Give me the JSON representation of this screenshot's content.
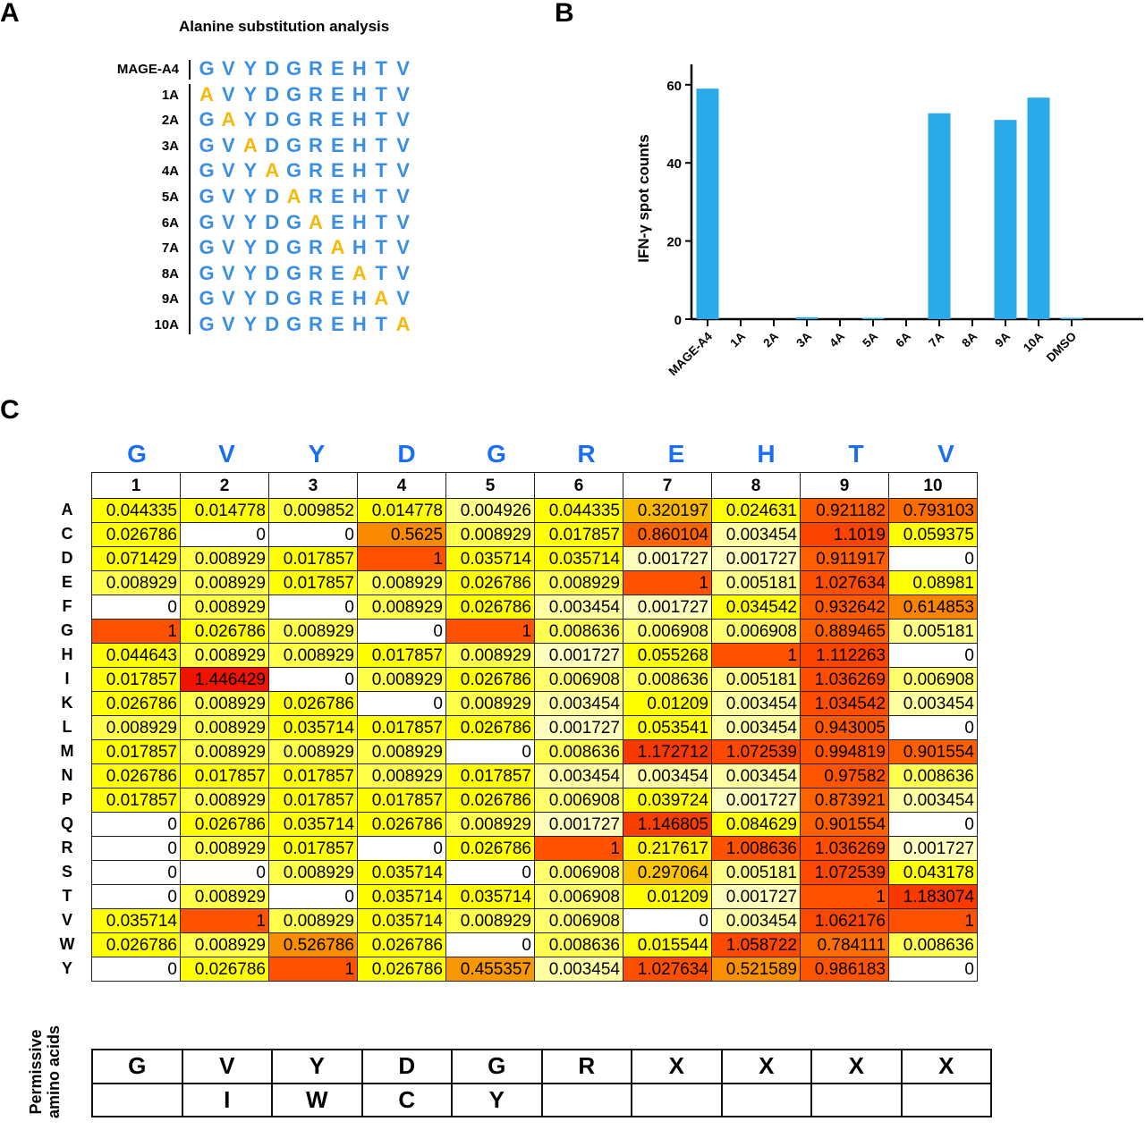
{
  "panels": {
    "a": "A",
    "b": "B",
    "c": "C"
  },
  "panel_a": {
    "title": "Alanine substitution analysis",
    "colors": {
      "native": "#3b8fe3",
      "substituted": "#f5b90a"
    },
    "rows": [
      {
        "label": "MAGE-A4",
        "seq": "GVYDGREHTV",
        "sub": -1
      },
      {
        "label": "1A",
        "seq": "AVYDGREHTV",
        "sub": 0
      },
      {
        "label": "2A",
        "seq": "GAYDGREHTV",
        "sub": 1
      },
      {
        "label": "3A",
        "seq": "GVADGREHTV",
        "sub": 2
      },
      {
        "label": "4A",
        "seq": "GVYAGREHTV",
        "sub": 3
      },
      {
        "label": "5A",
        "seq": "GVYDAREHTV",
        "sub": 4
      },
      {
        "label": "6A",
        "seq": "GVYDGAEHTV",
        "sub": 5
      },
      {
        "label": "7A",
        "seq": "GVYDGRAHTV",
        "sub": 6
      },
      {
        "label": "8A",
        "seq": "GVYDGREATV",
        "sub": 7
      },
      {
        "label": "9A",
        "seq": "GVYDGREHAV",
        "sub": 8
      },
      {
        "label": "10A",
        "seq": "GVYDGREHTA",
        "sub": 9
      }
    ]
  },
  "chart_data": [
    {
      "type": "bar",
      "categories": [
        "MAGE-A4",
        "1A",
        "2A",
        "3A",
        "4A",
        "5A",
        "6A",
        "7A",
        "8A",
        "9A",
        "10A",
        "DMSO"
      ],
      "values": [
        59,
        0,
        0,
        0.5,
        0,
        0.2,
        0,
        52.7,
        0,
        51,
        56.7,
        0.2
      ],
      "ylabel": "IFN-γ spot counts",
      "ylim": [
        0,
        65
      ],
      "yticks": [
        "0",
        "20",
        "40",
        "60"
      ],
      "color": "#2aaaea",
      "grid": false
    },
    {
      "type": "heatmap",
      "top_letters": [
        "G",
        "V",
        "Y",
        "D",
        "G",
        "R",
        "E",
        "H",
        "T",
        "V"
      ],
      "columns": [
        "1",
        "2",
        "3",
        "4",
        "5",
        "6",
        "7",
        "8",
        "9",
        "10"
      ],
      "rows": [
        "A",
        "C",
        "D",
        "E",
        "F",
        "G",
        "H",
        "I",
        "K",
        "L",
        "M",
        "N",
        "P",
        "Q",
        "R",
        "S",
        "T",
        "V",
        "W",
        "Y"
      ],
      "values": [
        [
          "0.044335",
          "0.014778",
          "0.009852",
          "0.014778",
          "0.004926",
          "0.044335",
          "0.320197",
          "0.024631",
          "0.921182",
          "0.793103"
        ],
        [
          "0.026786",
          "0",
          "0",
          "0.5625",
          "0.008929",
          "0.017857",
          "0.860104",
          "0.003454",
          "1.1019",
          "0.059375"
        ],
        [
          "0.071429",
          "0.008929",
          "0.017857",
          "1",
          "0.035714",
          "0.035714",
          "0.001727",
          "0.001727",
          "0.911917",
          "0"
        ],
        [
          "0.008929",
          "0.008929",
          "0.017857",
          "0.008929",
          "0.026786",
          "0.008929",
          "1",
          "0.005181",
          "1.027634",
          "0.08981"
        ],
        [
          "0",
          "0.008929",
          "0",
          "0.008929",
          "0.026786",
          "0.003454",
          "0.001727",
          "0.034542",
          "0.932642",
          "0.614853"
        ],
        [
          "1",
          "0.026786",
          "0.008929",
          "0",
          "1",
          "0.008636",
          "0.006908",
          "0.006908",
          "0.889465",
          "0.005181"
        ],
        [
          "0.044643",
          "0.008929",
          "0.008929",
          "0.017857",
          "0.008929",
          "0.001727",
          "0.055268",
          "1",
          "1.112263",
          "0"
        ],
        [
          "0.017857",
          "1.446429",
          "0",
          "0.008929",
          "0.026786",
          "0.006908",
          "0.008636",
          "0.005181",
          "1.036269",
          "0.006908"
        ],
        [
          "0.026786",
          "0.008929",
          "0.026786",
          "0",
          "0.008929",
          "0.003454",
          "0.01209",
          "0.003454",
          "1.034542",
          "0.003454"
        ],
        [
          "0.008929",
          "0.008929",
          "0.035714",
          "0.017857",
          "0.026786",
          "0.001727",
          "0.053541",
          "0.003454",
          "0.943005",
          "0"
        ],
        [
          "0.017857",
          "0.008929",
          "0.008929",
          "0.008929",
          "0",
          "0.008636",
          "1.172712",
          "1.072539",
          "0.994819",
          "0.901554"
        ],
        [
          "0.026786",
          "0.017857",
          "0.017857",
          "0.008929",
          "0.017857",
          "0.003454",
          "0.003454",
          "0.003454",
          "0.97582",
          "0.008636"
        ],
        [
          "0.017857",
          "0.008929",
          "0.017857",
          "0.017857",
          "0.026786",
          "0.006908",
          "0.039724",
          "0.001727",
          "0.873921",
          "0.003454"
        ],
        [
          "0",
          "0.026786",
          "0.035714",
          "0.026786",
          "0.008929",
          "0.001727",
          "1.146805",
          "0.084629",
          "0.901554",
          "0"
        ],
        [
          "0",
          "0.008929",
          "0.017857",
          "0",
          "0.026786",
          "1",
          "0.217617",
          "1.008636",
          "1.036269",
          "0.001727"
        ],
        [
          "0",
          "0",
          "0.008929",
          "0.035714",
          "0",
          "0.006908",
          "0.297064",
          "0.005181",
          "1.072539",
          "0.043178"
        ],
        [
          "0",
          "0.008929",
          "0",
          "0.035714",
          "0.035714",
          "0.006908",
          "0.01209",
          "0.001727",
          "1",
          "1.183074"
        ],
        [
          "0.035714",
          "1",
          "0.008929",
          "0.035714",
          "0.008929",
          "0.006908",
          "0",
          "0.003454",
          "1.062176",
          "1"
        ],
        [
          "0.026786",
          "0.008929",
          "0.526786",
          "0.026786",
          "0",
          "0.008636",
          "0.015544",
          "1.058722",
          "0.784111",
          "0.008636"
        ],
        [
          "0",
          "0.026786",
          "1",
          "0.026786",
          "0.455357",
          "0.003454",
          "1.027634",
          "0.521589",
          "0.986183",
          "0"
        ]
      ],
      "colors": {
        "zero": "#ffffff",
        "low": "#ffff00",
        "mid": "#f7a600",
        "high": "#ff5200",
        "max": "#ee1400"
      }
    }
  ],
  "permissive": {
    "label_line1": "Permissive",
    "label_line2": "amino acids",
    "row1": [
      "G",
      "V",
      "Y",
      "D",
      "G",
      "R",
      "X",
      "X",
      "X",
      "X"
    ],
    "row2": [
      "",
      "I",
      "W",
      "C",
      "Y",
      "",
      "",
      "",
      "",
      ""
    ]
  }
}
